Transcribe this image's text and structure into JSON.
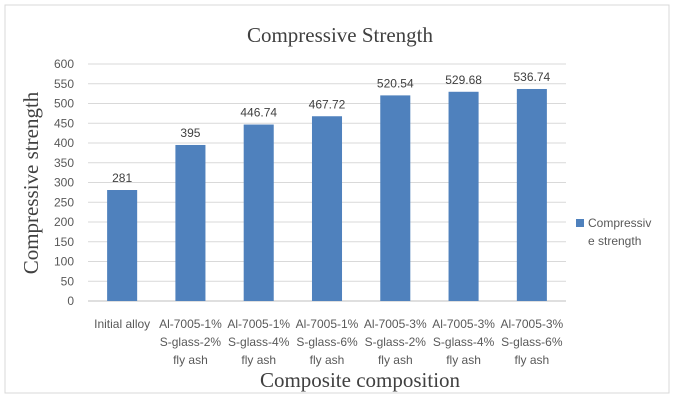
{
  "chart_data": {
    "type": "bar",
    "title": "Compressive Strength",
    "xlabel": "Composite composition",
    "ylabel": "Compressive strength",
    "categories": [
      [
        "Initial alloy"
      ],
      [
        "Al-7005-1%",
        "S-glass-2%",
        "fly ash"
      ],
      [
        "Al-7005-1%",
        "S-glass-4%",
        "fly ash"
      ],
      [
        "Al-7005-1%",
        "S-glass-6%",
        "fly ash"
      ],
      [
        "Al-7005-3%",
        "S-glass-2%",
        "fly ash"
      ],
      [
        "Al-7005-3%",
        "S-glass-4%",
        "fly ash"
      ],
      [
        "Al-7005-3%",
        "S-glass-6%",
        "fly ash"
      ]
    ],
    "values": [
      281,
      395,
      446.74,
      467.72,
      520.54,
      529.68,
      536.74
    ],
    "data_labels": [
      "281",
      "395",
      "446.74",
      "467.72",
      "520.54",
      "529.68",
      "536.74"
    ],
    "yticks": [
      0,
      50,
      100,
      150,
      200,
      250,
      300,
      350,
      400,
      450,
      500,
      550,
      600
    ],
    "ylim": [
      0,
      600
    ],
    "grid": true,
    "legend": {
      "position": "right",
      "lines": [
        "Compressiv",
        "e strength"
      ]
    },
    "bar_color": "#4f81bd"
  }
}
